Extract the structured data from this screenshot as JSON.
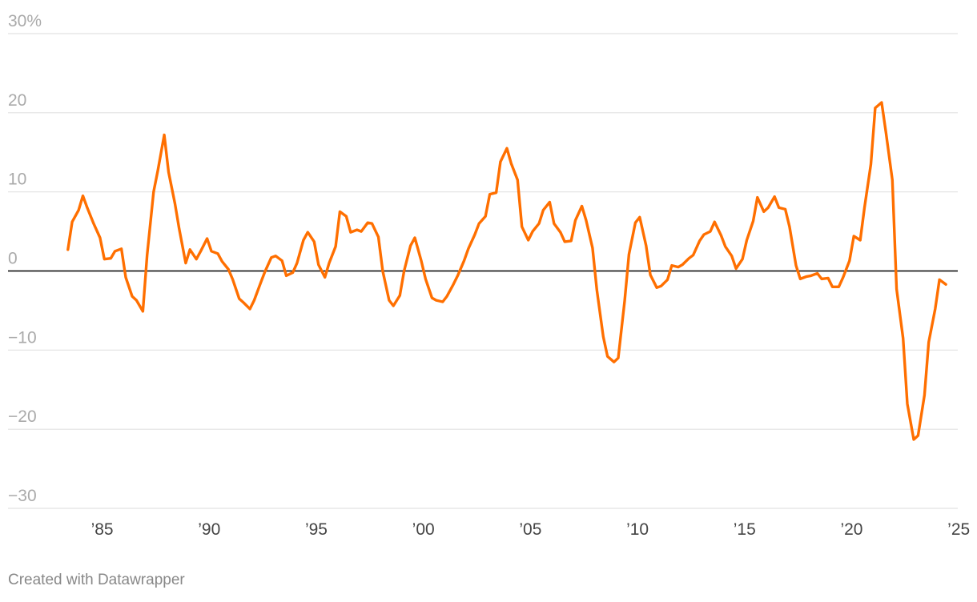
{
  "chart_data": {
    "type": "line",
    "title": "",
    "xlabel": "",
    "ylabel": "",
    "ylim": [
      -30,
      30
    ],
    "xlim": [
      1983,
      2025
    ],
    "yticks": [
      {
        "value": 30,
        "label": "30%"
      },
      {
        "value": 20,
        "label": "20"
      },
      {
        "value": 10,
        "label": "10"
      },
      {
        "value": 0,
        "label": "0"
      },
      {
        "value": -10,
        "label": "−10"
      },
      {
        "value": -20,
        "label": "−20"
      },
      {
        "value": -30,
        "label": "−30"
      }
    ],
    "xticks": [
      {
        "value": 1985,
        "label": "’85"
      },
      {
        "value": 1990,
        "label": "’90"
      },
      {
        "value": 1995,
        "label": "’95"
      },
      {
        "value": 2000,
        "label": "’00"
      },
      {
        "value": 2005,
        "label": "’05"
      },
      {
        "value": 2010,
        "label": "’10"
      },
      {
        "value": 2015,
        "label": "’15"
      },
      {
        "value": 2020,
        "label": "’20"
      },
      {
        "value": 2025,
        "label": "’25"
      }
    ],
    "grid": true,
    "line_color": "#ff6f00",
    "series": [
      {
        "x": [
          1983.4,
          1983.6,
          1983.9,
          1984.1,
          1984.3,
          1984.6,
          1984.9,
          1985.1,
          1985.4,
          1985.6,
          1985.9,
          1986.1,
          1986.4,
          1986.6,
          1986.9,
          1987.1,
          1987.4,
          1987.6,
          1987.9,
          1988.1,
          1988.4,
          1988.6,
          1988.9,
          1989.1,
          1989.4,
          1989.6,
          1989.9,
          1990.1,
          1990.4,
          1990.6,
          1990.9,
          1991.1,
          1991.4,
          1991.6,
          1991.9,
          1992.1,
          1992.4,
          1992.6,
          1992.9,
          1993.1,
          1993.4,
          1993.6,
          1993.9,
          1994.1,
          1994.4,
          1994.6,
          1994.9,
          1995.1,
          1995.4,
          1995.6,
          1995.9,
          1996.1,
          1996.4,
          1996.6,
          1996.9,
          1997.1,
          1997.4,
          1997.6,
          1997.9,
          1998.1,
          1998.4,
          1998.6,
          1998.9,
          1999.1,
          1999.4,
          1999.6,
          1999.9,
          2000.1,
          2000.4,
          2000.6,
          2000.9,
          2001.1,
          2001.4,
          2001.6,
          2001.9,
          2002.1,
          2002.4,
          2002.6,
          2002.9,
          2003.1,
          2003.4,
          2003.6,
          2003.9,
          2004.1,
          2004.4,
          2004.6,
          2004.9,
          2005.1,
          2005.4,
          2005.6,
          2005.9,
          2006.1,
          2006.4,
          2006.6,
          2006.9,
          2007.1,
          2007.4,
          2007.6,
          2007.9,
          2008.1,
          2008.4,
          2008.6,
          2008.9,
          2009.1,
          2009.4,
          2009.6,
          2009.9,
          2010.1,
          2010.4,
          2010.6,
          2010.9,
          2011.1,
          2011.4,
          2011.6,
          2011.9,
          2012.1,
          2012.4,
          2012.6,
          2012.9,
          2013.1,
          2013.4,
          2013.6,
          2013.9,
          2014.1,
          2014.4,
          2014.6,
          2014.9,
          2015.1,
          2015.4,
          2015.6,
          2015.9,
          2016.1,
          2016.4,
          2016.6,
          2016.9,
          2017.1,
          2017.4,
          2017.6,
          2017.9,
          2018.1,
          2018.4,
          2018.6,
          2018.9,
          2019.1,
          2019.4,
          2019.6,
          2019.9,
          2020.1,
          2020.4,
          2020.6,
          2020.9,
          2021.1,
          2021.4,
          2021.6,
          2021.9,
          2022.1,
          2022.4,
          2022.6,
          2022.9,
          2023.1,
          2023.4,
          2023.6,
          2023.9,
          2024.1,
          2024.4
        ],
        "values": [
          2.7,
          6.2,
          7.7,
          9.5,
          8.0,
          6.0,
          4.2,
          1.5,
          1.6,
          2.5,
          2.8,
          -0.8,
          -3.2,
          -3.7,
          -5.1,
          2.0,
          10.0,
          12.7,
          17.2,
          12.5,
          8.5,
          5.3,
          1.0,
          2.7,
          1.5,
          2.5,
          4.1,
          2.5,
          2.2,
          1.2,
          0.2,
          -1.1,
          -3.5,
          -4.0,
          -4.8,
          -3.7,
          -1.5,
          -0.1,
          1.7,
          1.9,
          1.3,
          -0.6,
          -0.2,
          1.0,
          3.9,
          4.9,
          3.7,
          0.8,
          -0.8,
          1.0,
          3.1,
          7.5,
          6.9,
          4.9,
          5.2,
          5.0,
          6.1,
          6.0,
          4.3,
          0.0,
          -3.7,
          -4.4,
          -3.1,
          0.0,
          3.2,
          4.2,
          1.3,
          -1.0,
          -3.4,
          -3.7,
          -3.9,
          -3.2,
          -1.7,
          -0.6,
          1.3,
          2.8,
          4.6,
          6.0,
          6.9,
          9.7,
          9.9,
          13.8,
          15.5,
          13.6,
          11.5,
          5.6,
          3.9,
          5.0,
          6.0,
          7.7,
          8.7,
          6.0,
          4.9,
          3.7,
          3.8,
          6.4,
          8.2,
          6.4,
          2.9,
          -2.4,
          -8.3,
          -10.8,
          -11.5,
          -11.0,
          -3.8,
          2.1,
          6.1,
          6.8,
          3.2,
          -0.5,
          -2.1,
          -1.9,
          -1.1,
          0.7,
          0.5,
          0.8,
          1.6,
          2.0,
          3.8,
          4.6,
          5.0,
          6.2,
          4.5,
          3.1,
          1.9,
          0.3,
          1.5,
          3.9,
          6.3,
          9.3,
          7.5,
          8.0,
          9.4,
          8.0,
          7.8,
          5.6,
          0.7,
          -1.0,
          -0.7,
          -0.6,
          -0.3,
          -1.0,
          -0.9,
          -2.0,
          -2.0,
          -0.8,
          1.3,
          4.4,
          3.9,
          8.0,
          13.5,
          20.6,
          21.3,
          17.5,
          11.5,
          -2.3,
          -8.5,
          -16.8,
          -21.3,
          -20.8,
          -15.7,
          -9.0,
          -4.8,
          -1.1,
          -1.7
        ]
      }
    ]
  },
  "footer": {
    "credit": "Created with Datawrapper"
  }
}
